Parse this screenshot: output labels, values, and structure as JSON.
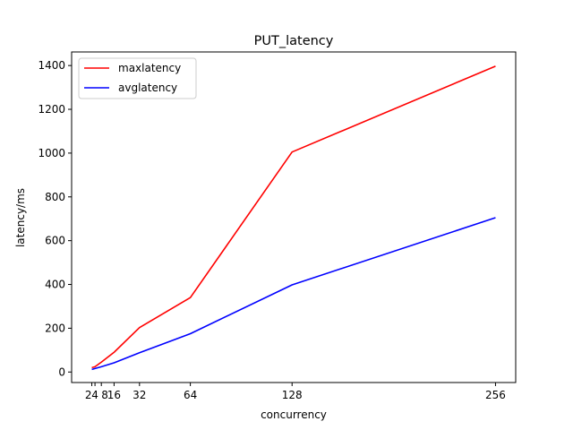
{
  "chart_data": {
    "type": "line",
    "title": "PUT_latency",
    "xlabel": "concurrency",
    "ylabel": "latency/ms",
    "xlim": [
      -10.7,
      268.7
    ],
    "ylim": [
      -48,
      1462
    ],
    "xticks": [
      2,
      4,
      8,
      16,
      32,
      64,
      128,
      256
    ],
    "xtick_labels": [
      "2",
      "4",
      "8",
      "16",
      "32",
      "64",
      "128",
      "256"
    ],
    "yticks": [
      0,
      200,
      400,
      600,
      800,
      1000,
      1200,
      1400
    ],
    "ytick_labels": [
      "0",
      "200",
      "400",
      "600",
      "800",
      "1000",
      "1200",
      "1400"
    ],
    "grid": false,
    "legend_position": "top-left",
    "x": [
      2,
      4,
      8,
      16,
      32,
      64,
      128,
      256
    ],
    "series": [
      {
        "name": "maxlatency",
        "color": "#ff0000",
        "values": [
          20,
          24,
          45,
          90,
          203,
          340,
          1005,
          1397
        ]
      },
      {
        "name": "avglatency",
        "color": "#0000ff",
        "values": [
          12,
          16,
          24,
          42,
          88,
          175,
          398,
          705
        ]
      }
    ]
  }
}
